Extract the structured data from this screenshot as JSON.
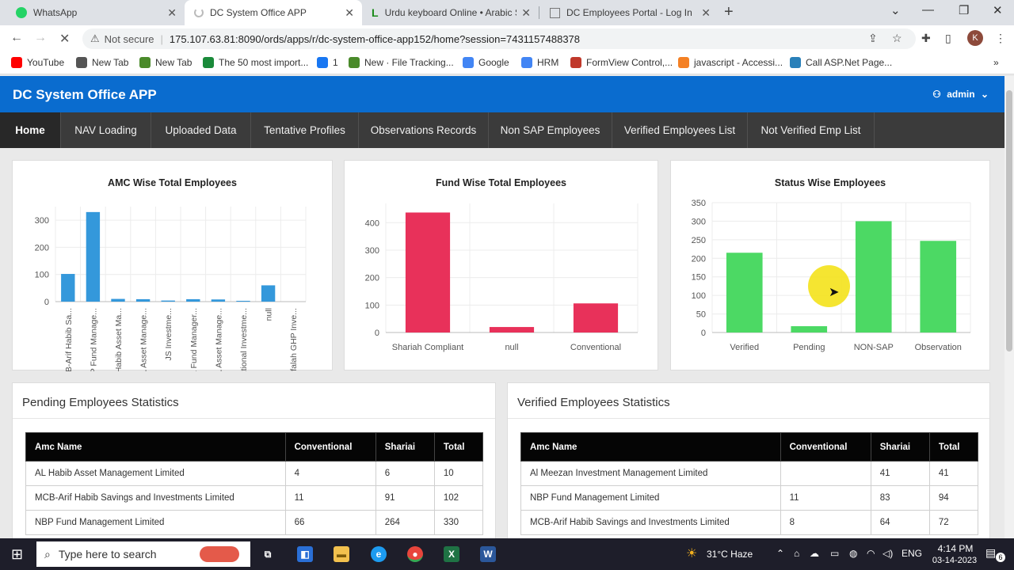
{
  "browser": {
    "tabs": [
      {
        "title": "WhatsApp",
        "icon": "whatsapp-icon",
        "active": false
      },
      {
        "title": "DC System Office APP",
        "icon": "loading-icon",
        "active": true
      },
      {
        "title": "Urdu keyboard Online • Arabic S",
        "icon": "urdu-keyboard-icon",
        "active": false
      },
      {
        "title": "DC Employees Portal - Log In",
        "icon": "portal-icon",
        "active": false
      }
    ],
    "new_tab_label": "+",
    "not_secure": "Not secure",
    "url": "175.107.63.81:8090/ords/apps/r/dc-system-office-app152/home?session=7431157488378",
    "profile_initial": "K",
    "bookmarks": [
      {
        "label": "YouTube",
        "icon": "youtube-icon",
        "color": "#ff0000"
      },
      {
        "label": "New Tab",
        "icon": "globe-icon",
        "color": "#555555"
      },
      {
        "label": "New Tab",
        "icon": "leaf-icon",
        "color": "#4a8a2a"
      },
      {
        "label": "The 50 most import...",
        "icon": "x-icon",
        "color": "#1a8a3a"
      },
      {
        "label": "1",
        "icon": "facebook-icon",
        "color": "#1877f2"
      },
      {
        "label": "New · File Tracking...",
        "icon": "leaf-icon",
        "color": "#4a8a2a"
      },
      {
        "label": "Google",
        "icon": "google-icon",
        "color": "#4285f4"
      },
      {
        "label": "HRM",
        "icon": "google-icon",
        "color": "#4285f4"
      },
      {
        "label": "FormView Control,...",
        "icon": "msdn-icon",
        "color": "#c0392b"
      },
      {
        "label": "javascript - Accessi...",
        "icon": "stackoverflow-icon",
        "color": "#f48024"
      },
      {
        "label": "Call ASP.Net Page...",
        "icon": "aspnet-icon",
        "color": "#2980b9"
      }
    ]
  },
  "app": {
    "title": "DC System Office APP",
    "user": "admin",
    "brand_color": "#0a6ccf",
    "menu": [
      "Home",
      "NAV Loading",
      "Uploaded Data",
      "Tentative Profiles",
      "Observations Records",
      "Non SAP Employees",
      "Verified Employees List",
      "Not Verified Emp List"
    ]
  },
  "chart_data": [
    {
      "type": "bar",
      "title": "AMC Wise Total Employees",
      "categories": [
        "MCB-Arif Habib Sa...",
        "NBP Fund Manage...",
        "AL Habib Asset Ma...",
        "HBL Asset Manage...",
        "JS Investme...",
        "UBL Fund Manager...",
        "ABL Asset Manage...",
        "National Investme...",
        "null",
        "Alfalah GHP Inve..."
      ],
      "values": [
        102,
        330,
        10,
        9,
        4,
        9,
        8,
        3,
        60,
        0
      ],
      "ylim": [
        0,
        350
      ],
      "yticks": [
        0,
        100,
        200,
        300
      ],
      "color": "#3498db"
    },
    {
      "type": "bar",
      "title": "Fund Wise Total Employees",
      "categories": [
        "Shariah Compliant",
        "null",
        "Conventional"
      ],
      "values": [
        437,
        20,
        106
      ],
      "ylim": [
        0,
        470
      ],
      "yticks": [
        0,
        100,
        200,
        300,
        400
      ],
      "color": "#e8315a"
    },
    {
      "type": "bar",
      "title": "Status Wise Employees",
      "categories": [
        "Verified",
        "Pending",
        "NON-SAP",
        "Observation"
      ],
      "values": [
        215,
        17,
        300,
        247
      ],
      "ylim": [
        0,
        350
      ],
      "yticks": [
        0,
        50,
        100,
        150,
        200,
        250,
        300,
        350
      ],
      "color": "#4cd964"
    }
  ],
  "pending": {
    "title": "Pending Employees Statistics",
    "headers": [
      "Amc Name",
      "Conventional",
      "Shariai",
      "Total"
    ],
    "rows": [
      [
        "AL Habib Asset Management Limited",
        "4",
        "6",
        "10"
      ],
      [
        "MCB-Arif Habib Savings and Investments Limited",
        "11",
        "91",
        "102"
      ],
      [
        "NBP Fund Management Limited",
        "66",
        "264",
        "330"
      ]
    ]
  },
  "verified": {
    "title": "Verified Employees Statistics",
    "headers": [
      "Amc Name",
      "Conventional",
      "Shariai",
      "Total"
    ],
    "rows": [
      [
        "Al Meezan Investment Management Limited",
        "",
        "41",
        "41"
      ],
      [
        "NBP Fund Management Limited",
        "11",
        "83",
        "94"
      ],
      [
        "MCB-Arif Habib Savings and Investments Limited",
        "8",
        "64",
        "72"
      ]
    ]
  },
  "taskbar": {
    "search_placeholder": "Type here to search",
    "weather": "31°C  Haze",
    "lang": "ENG",
    "time": "4:14 PM",
    "date": "03-14-2023",
    "notifications": "6"
  }
}
